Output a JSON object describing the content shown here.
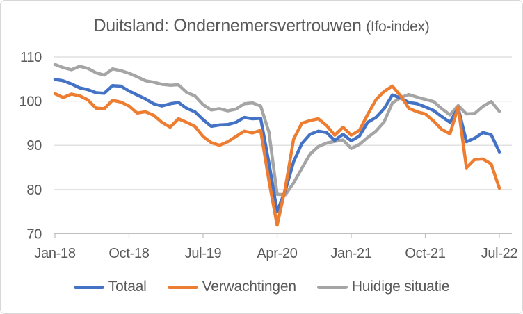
{
  "chart_data": {
    "type": "line",
    "title": "Duitsland: Ondernemersvertrouwen (Ifo-index)",
    "title_main": "Duitsland: Ondernemersvertrouwen",
    "title_suffix": "(Ifo-index)",
    "ylim": [
      70,
      110
    ],
    "y_ticks": [
      110,
      100,
      90,
      80,
      70
    ],
    "x_tick_labels": [
      "Jan-18",
      "Oct-18",
      "Jul-19",
      "Apr-20",
      "Jan-21",
      "Oct-21",
      "Jul-22"
    ],
    "x_tick_indices": [
      0,
      9,
      18,
      27,
      36,
      45,
      54
    ],
    "grid": "horizontal",
    "legend_position": "bottom",
    "x_categories": [
      "Jan-18",
      "Feb-18",
      "Mar-18",
      "Apr-18",
      "May-18",
      "Jun-18",
      "Jul-18",
      "Aug-18",
      "Sep-18",
      "Oct-18",
      "Nov-18",
      "Dec-18",
      "Jan-19",
      "Feb-19",
      "Mar-19",
      "Apr-19",
      "May-19",
      "Jun-19",
      "Jul-19",
      "Aug-19",
      "Sep-19",
      "Oct-19",
      "Nov-19",
      "Dec-19",
      "Jan-20",
      "Feb-20",
      "Mar-20",
      "Apr-20",
      "May-20",
      "Jun-20",
      "Jul-20",
      "Aug-20",
      "Sep-20",
      "Oct-20",
      "Nov-20",
      "Dec-20",
      "Jan-21",
      "Feb-21",
      "Mar-21",
      "Apr-21",
      "May-21",
      "Jun-21",
      "Jul-21",
      "Aug-21",
      "Sep-21",
      "Oct-21",
      "Nov-21",
      "Dec-21",
      "Jan-22",
      "Feb-22",
      "Mar-22",
      "Apr-22",
      "May-22",
      "Jun-22",
      "Jul-22"
    ],
    "series": [
      {
        "name": "Totaal",
        "color": "#4472C4",
        "values": [
          104.9,
          104.6,
          103.9,
          103.0,
          102.6,
          101.9,
          101.8,
          103.5,
          103.4,
          102.3,
          101.4,
          100.5,
          99.4,
          98.9,
          99.4,
          99.7,
          98.4,
          97.6,
          95.8,
          94.3,
          94.6,
          94.7,
          95.2,
          96.3,
          96.0,
          96.1,
          86.0,
          75.0,
          79.8,
          86.3,
          90.4,
          92.5,
          93.2,
          92.9,
          91.1,
          92.5,
          91.0,
          92.1,
          95.2,
          96.3,
          98.3,
          101.4,
          100.7,
          99.7,
          99.4,
          98.7,
          97.9,
          96.5,
          95.2,
          98.5,
          90.8,
          91.6,
          92.9,
          92.4,
          88.5
        ]
      },
      {
        "name": "Verwachtingen",
        "color": "#ED7D31",
        "values": [
          101.7,
          100.8,
          101.6,
          101.2,
          100.3,
          98.4,
          98.3,
          100.2,
          99.8,
          98.9,
          97.3,
          97.6,
          96.8,
          95.2,
          94.1,
          96.0,
          95.2,
          94.3,
          92.0,
          90.6,
          90.0,
          90.8,
          92.0,
          93.2,
          92.8,
          93.4,
          82.0,
          71.9,
          80.4,
          91.4,
          95.0,
          95.6,
          96.0,
          94.5,
          92.3,
          94.1,
          92.3,
          93.4,
          97.0,
          100.3,
          102.2,
          103.4,
          101.2,
          98.4,
          97.6,
          97.1,
          95.5,
          93.6,
          92.6,
          98.7,
          84.9,
          86.8,
          86.9,
          85.8,
          80.3
        ]
      },
      {
        "name": "Huidige situatie",
        "color": "#A5A5A5",
        "values": [
          108.3,
          107.6,
          107.1,
          107.9,
          107.4,
          106.4,
          105.9,
          107.3,
          106.9,
          106.3,
          105.5,
          104.6,
          104.3,
          103.8,
          103.6,
          103.7,
          102.0,
          101.2,
          99.2,
          98.0,
          98.3,
          97.8,
          98.2,
          99.4,
          99.6,
          98.9,
          93.0,
          78.9,
          78.8,
          81.5,
          84.8,
          88.0,
          89.7,
          90.5,
          90.9,
          91.2,
          89.3,
          90.2,
          91.8,
          93.2,
          95.3,
          99.6,
          100.8,
          101.5,
          100.9,
          100.4,
          99.9,
          98.3,
          96.9,
          99.0,
          97.1,
          97.2,
          98.8,
          99.9,
          97.7
        ]
      }
    ],
    "colors": {
      "text": "#595959",
      "gridline": "#D9D9D9",
      "axis_line": "#BFBFBF",
      "background": "#FFFFFF",
      "border": "#D7D7D7"
    }
  }
}
